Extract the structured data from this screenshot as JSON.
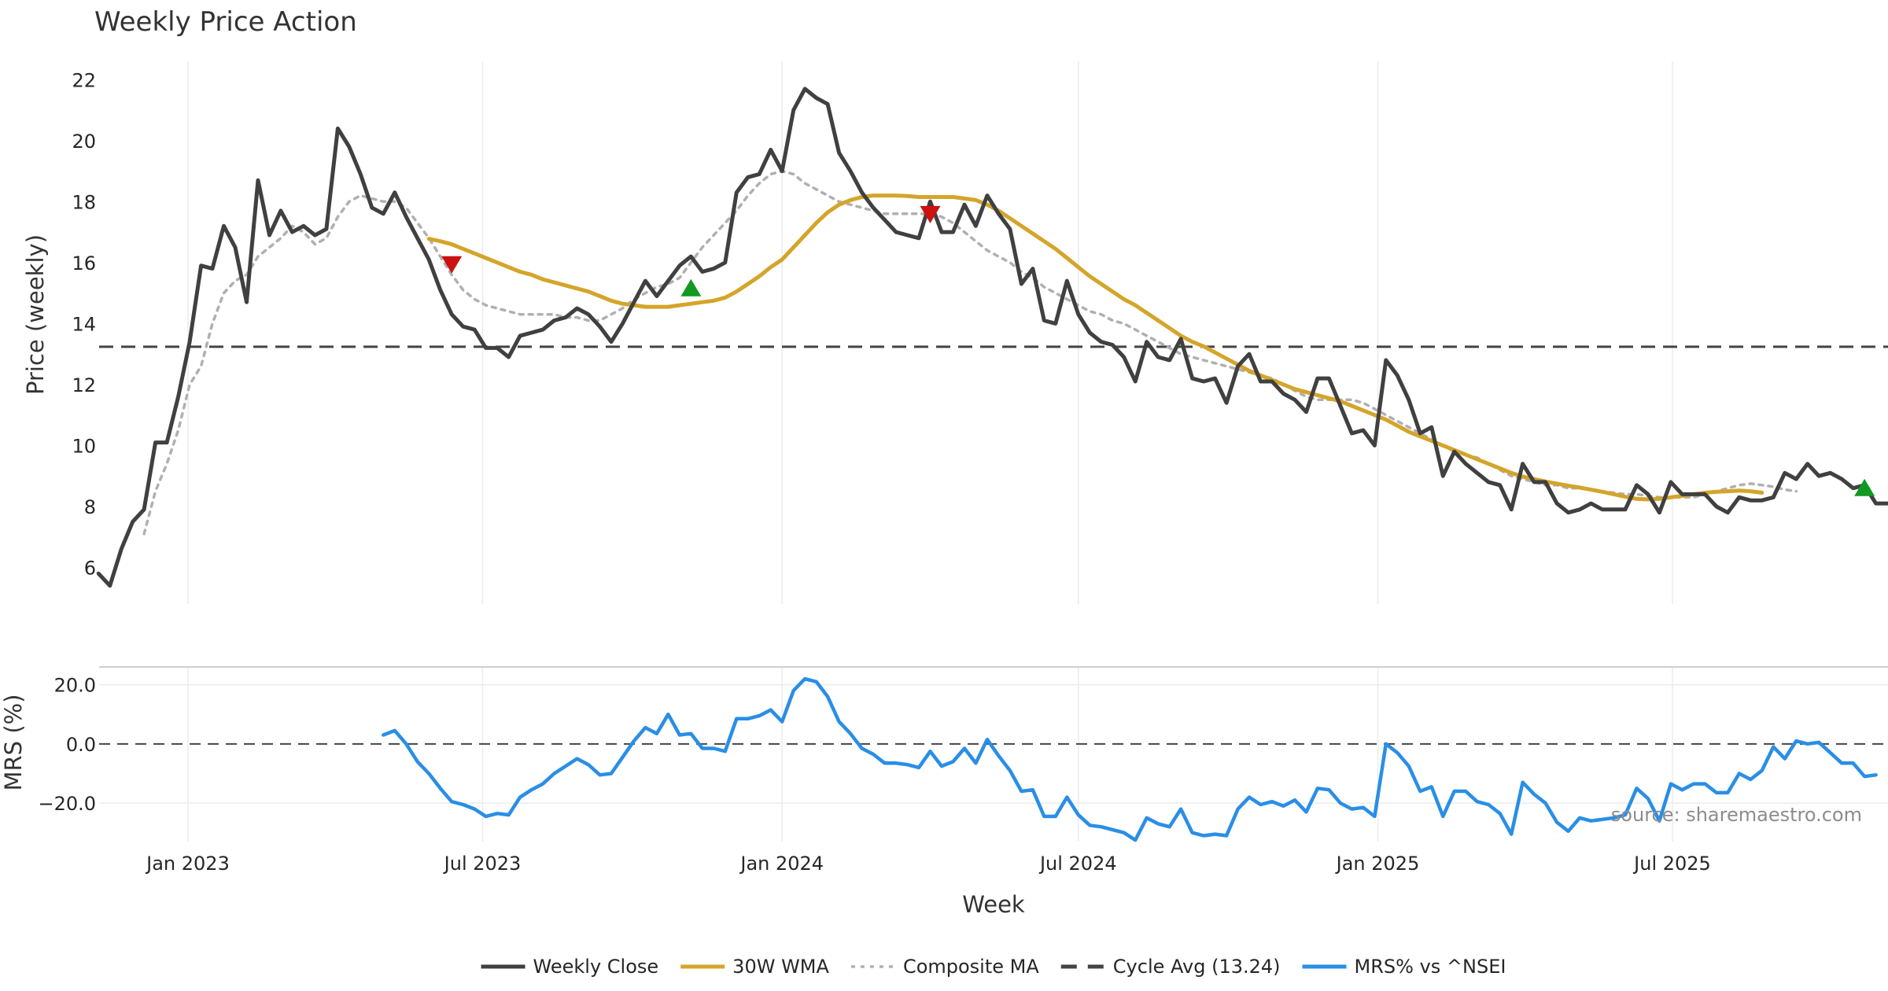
{
  "chart_data": [
    {
      "type": "line",
      "title": "Weekly Price Action",
      "ylabel": "Price (weekly)",
      "xlabel": "",
      "x_start": "2022-11-07",
      "x_step_days": 7,
      "ylim": [
        4.8,
        22.6
      ],
      "yticks": [
        6,
        8,
        10,
        12,
        14,
        16,
        18,
        20,
        22
      ],
      "ytick_labels": [
        "6",
        "8",
        "10",
        "12",
        "14",
        "16",
        "18",
        "20",
        "22"
      ],
      "grid": "vertical",
      "cycle_avg": 13.24,
      "series": [
        {
          "name": "Weekly Close",
          "color": "#404040",
          "style": "solid",
          "values": [
            5.8,
            5.4,
            6.6,
            7.5,
            7.9,
            10.1,
            10.1,
            11.6,
            13.4,
            15.9,
            15.8,
            17.2,
            16.5,
            14.7,
            18.7,
            16.9,
            17.7,
            17.0,
            17.2,
            16.9,
            17.1,
            20.4,
            19.8,
            18.9,
            17.8,
            17.6,
            18.3,
            17.5,
            16.8,
            16.1,
            15.1,
            14.3,
            13.9,
            13.8,
            13.2,
            13.2,
            12.9,
            13.6,
            13.7,
            13.8,
            14.1,
            14.2,
            14.5,
            14.3,
            13.9,
            13.4,
            14.0,
            14.7,
            15.4,
            14.9,
            15.4,
            15.9,
            16.2,
            15.7,
            15.8,
            16.0,
            18.3,
            18.8,
            18.9,
            19.7,
            19.0,
            21.0,
            21.7,
            21.4,
            21.2,
            19.6,
            19.0,
            18.3,
            17.8,
            17.4,
            17.0,
            16.9,
            16.8,
            18.0,
            17.0,
            17.0,
            17.9,
            17.2,
            18.2,
            17.6,
            17.1,
            15.3,
            15.8,
            14.1,
            14.0,
            15.4,
            14.3,
            13.7,
            13.4,
            13.3,
            12.9,
            12.1,
            13.4,
            12.9,
            12.8,
            13.5,
            12.2,
            12.1,
            12.2,
            11.4,
            12.6,
            13.0,
            12.1,
            12.1,
            11.7,
            11.5,
            11.1,
            12.2,
            12.2,
            11.3,
            10.4,
            10.5,
            10.0,
            12.8,
            12.3,
            11.5,
            10.4,
            10.6,
            9.0,
            9.8,
            9.4,
            9.1,
            8.8,
            8.7,
            7.9,
            9.4,
            8.8,
            8.8,
            8.1,
            7.8,
            7.9,
            8.1,
            7.9,
            7.9,
            7.9,
            8.7,
            8.4,
            7.8,
            8.8,
            8.4,
            8.4,
            8.4,
            8.0,
            7.8,
            8.3,
            8.2,
            8.2,
            8.3,
            9.1,
            8.9,
            9.4,
            9.0,
            9.1,
            8.9,
            8.6,
            8.7,
            8.1,
            8.1
          ],
          "start_index": 0
        },
        {
          "name": "30W WMA",
          "color": "#d4a52a",
          "style": "solid",
          "start_index": 29,
          "values": [
            16.78,
            16.7,
            16.6,
            16.45,
            16.3,
            16.15,
            16.0,
            15.85,
            15.7,
            15.6,
            15.45,
            15.35,
            15.25,
            15.15,
            15.05,
            14.9,
            14.75,
            14.65,
            14.6,
            14.55,
            14.55,
            14.55,
            14.6,
            14.65,
            14.7,
            14.75,
            14.85,
            15.05,
            15.3,
            15.55,
            15.85,
            16.1,
            16.5,
            16.9,
            17.3,
            17.65,
            17.9,
            18.05,
            18.15,
            18.2,
            18.2,
            18.2,
            18.18,
            18.15,
            18.15,
            18.15,
            18.15,
            18.1,
            18.05,
            17.9,
            17.7,
            17.45,
            17.2,
            16.95,
            16.7,
            16.45,
            16.15,
            15.85,
            15.55,
            15.3,
            15.05,
            14.8,
            14.6,
            14.35,
            14.1,
            13.85,
            13.6,
            13.4,
            13.25,
            13.05,
            12.85,
            12.65,
            12.45,
            12.3,
            12.15,
            12.0,
            11.85,
            11.75,
            11.65,
            11.55,
            11.45,
            11.3,
            11.15,
            11.0,
            10.85,
            10.65,
            10.45,
            10.3,
            10.15,
            10.0,
            9.85,
            9.7,
            9.55,
            9.4,
            9.25,
            9.1,
            8.98,
            8.9,
            8.82,
            8.75,
            8.68,
            8.62,
            8.55,
            8.48,
            8.4,
            8.32,
            8.25,
            8.23,
            8.25,
            8.3,
            8.35,
            8.4,
            8.45,
            8.48,
            8.5,
            8.52,
            8.5,
            8.45
          ]
        },
        {
          "name": "Composite MA",
          "color": "#b0b0b0",
          "style": "dotted",
          "start_index": 4,
          "values": [
            7.1,
            8.5,
            9.4,
            10.5,
            12.0,
            12.6,
            14.0,
            15.0,
            15.4,
            15.6,
            16.2,
            16.5,
            16.8,
            17.2,
            17.0,
            16.6,
            16.8,
            17.5,
            18.0,
            18.2,
            18.1,
            18.0,
            18.0,
            17.8,
            17.3,
            16.8,
            16.2,
            15.6,
            15.1,
            14.8,
            14.6,
            14.5,
            14.4,
            14.3,
            14.3,
            14.3,
            14.3,
            14.2,
            14.2,
            14.1,
            14.1,
            14.3,
            14.5,
            14.8,
            15.0,
            15.2,
            15.3,
            15.5,
            16.0,
            16.5,
            16.9,
            17.3,
            17.7,
            18.2,
            18.6,
            18.9,
            19.0,
            18.9,
            18.6,
            18.4,
            18.2,
            18.0,
            17.9,
            17.8,
            17.7,
            17.6,
            17.6,
            17.6,
            17.6,
            17.6,
            17.5,
            17.3,
            17.0,
            16.7,
            16.4,
            16.2,
            16.0,
            15.7,
            15.5,
            15.2,
            15.0,
            14.8,
            14.6,
            14.4,
            14.3,
            14.1,
            14.0,
            13.8,
            13.6,
            13.4,
            13.2,
            13.0,
            12.9,
            12.8,
            12.7,
            12.6,
            12.5,
            12.4,
            12.3,
            12.2,
            12.0,
            11.8,
            11.6,
            11.5,
            11.5,
            11.5,
            11.5,
            11.4,
            11.2,
            11.0,
            10.8,
            10.6,
            10.4,
            10.2,
            10.0,
            9.8,
            9.7,
            9.6,
            9.4,
            9.2,
            9.0,
            8.9,
            8.8,
            8.7,
            8.7,
            8.6,
            8.6,
            8.55,
            8.5,
            8.45,
            8.4,
            8.4,
            8.35,
            8.3,
            8.3,
            8.3,
            8.3,
            8.4,
            8.5,
            8.6,
            8.7,
            8.75,
            8.7,
            8.65,
            8.55,
            8.5
          ]
        }
      ],
      "signals": [
        {
          "type": "sell",
          "index": 31,
          "value": 15.95,
          "color": "#cc1111"
        },
        {
          "type": "buy",
          "index": 52,
          "value": 15.15,
          "color": "#119922"
        },
        {
          "type": "sell",
          "index": 73,
          "value": 17.6,
          "color": "#cc1111"
        },
        {
          "type": "buy",
          "index": 155,
          "value": 8.6,
          "color": "#119922"
        }
      ]
    },
    {
      "type": "line",
      "title": "",
      "ylabel": "MRS (%)",
      "xlabel": "Week",
      "ylim": [
        -33,
        26
      ],
      "yticks": [
        20.0,
        0.0,
        -20.0
      ],
      "ytick_labels": [
        "20.0",
        "0.0",
        "−20.0"
      ],
      "zero_line": 0.0,
      "x_tick_labels": [
        "Jan 2023",
        "Jul 2023",
        "Jan 2024",
        "Jul 2024",
        "Jan 2025",
        "Jul 2025"
      ],
      "x_tick_dates": [
        "2023-01-01",
        "2023-07-01",
        "2024-01-01",
        "2024-07-01",
        "2025-01-01",
        "2025-07-01"
      ],
      "series": [
        {
          "name": "MRS% vs ^NSEI",
          "color": "#2a8ee6",
          "style": "solid",
          "start_index": 25,
          "values": [
            3,
            4.5,
            0,
            -6,
            -10,
            -15,
            -19.5,
            -20.5,
            -22,
            -24.5,
            -23.5,
            -24,
            -18,
            -15.5,
            -13.5,
            -10,
            -7.5,
            -5,
            -7,
            -10.5,
            -10,
            -4.5,
            1,
            5.5,
            3.5,
            10,
            3,
            3.5,
            -1.5,
            -1.5,
            -2.5,
            8.5,
            8.5,
            9.5,
            11.5,
            7.5,
            18,
            22,
            21,
            16,
            7.5,
            3.5,
            -1.5,
            -3.5,
            -6.5,
            -6.5,
            -7,
            -8,
            -2.5,
            -7.5,
            -6,
            -1.5,
            -6.5,
            1.5,
            -4,
            -9,
            -16,
            -15.5,
            -24.5,
            -24.5,
            -18,
            -24,
            -27.5,
            -28,
            -29,
            -30,
            -32.5,
            -25,
            -27,
            -28,
            -22,
            -30,
            -31,
            -30.5,
            -31,
            -22,
            -18,
            -20.5,
            -19.5,
            -21,
            -19,
            -23,
            -15,
            -15.5,
            -20,
            -22,
            -21.5,
            -24.5,
            0,
            -3,
            -7.5,
            -16,
            -14.5,
            -24.5,
            -16,
            -16,
            -19.5,
            -20.5,
            -23.5,
            -30.5,
            -13,
            -17,
            -20,
            -26.5,
            -29.5,
            -25,
            -26,
            -25.5,
            -25,
            -24,
            -15,
            -18.5,
            -26,
            -13.5,
            -15.5,
            -13.5,
            -13.5,
            -16.5,
            -16.5,
            -10,
            -12,
            -9,
            -1,
            -5,
            1,
            0,
            0.5,
            -3,
            -6.5,
            -6.5,
            -11,
            -10.5
          ]
        }
      ]
    }
  ],
  "legend": {
    "items": [
      {
        "label": "Weekly Close",
        "color": "#404040",
        "style": "solid"
      },
      {
        "label": "30W WMA",
        "color": "#d4a52a",
        "style": "solid"
      },
      {
        "label": "Composite MA",
        "color": "#b0b0b0",
        "style": "dotted"
      },
      {
        "label": "Cycle Avg (13.24)",
        "color": "#444444",
        "style": "dashed"
      },
      {
        "label": "MRS% vs ^NSEI",
        "color": "#2a8ee6",
        "style": "solid"
      }
    ]
  },
  "source_note": "source: sharemaestro.com"
}
